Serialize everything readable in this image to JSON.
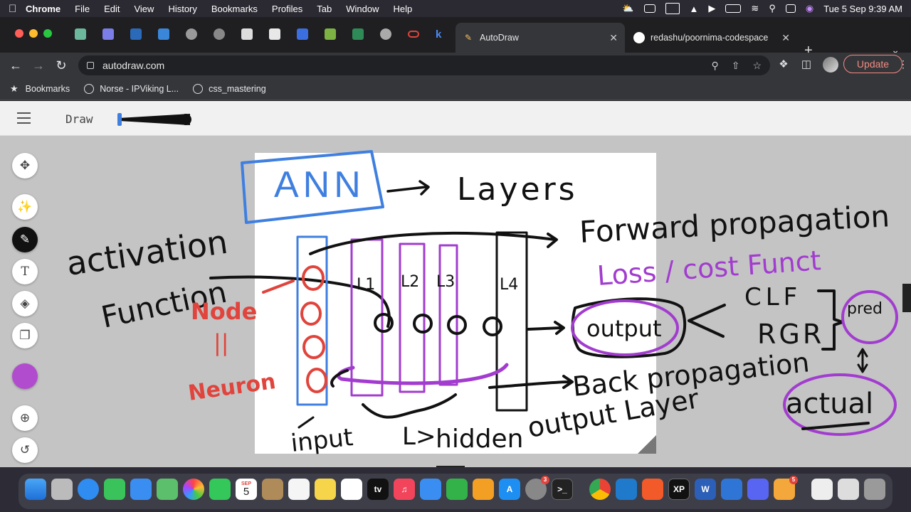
{
  "menubar": {
    "app": "Chrome",
    "items": [
      "File",
      "Edit",
      "View",
      "History",
      "Bookmarks",
      "Profiles",
      "Tab",
      "Window",
      "Help"
    ],
    "clock": "Tue 5 Sep  9:39 AM"
  },
  "tabs": {
    "active_label": "AutoDraw",
    "second_label": "redashu/poornima-codespace",
    "pinned_k": "k"
  },
  "toolbar": {
    "url": "autodraw.com",
    "update_label": "Update"
  },
  "bookmarks": {
    "items": [
      "Bookmarks",
      "Norse - IPViking L...",
      "css_mastering"
    ]
  },
  "app": {
    "mode_label": "Draw",
    "selected_color": "#b24ccf"
  },
  "ink_colors": {
    "black": "#111111",
    "blue": "#3f7fe0",
    "red": "#e0443c",
    "purple": "#a23ccf"
  },
  "sketch_text": {
    "ann": "ANN",
    "layers": "Layers",
    "activation": "activation",
    "function": "Function",
    "node": "Node",
    "equals": "||",
    "neuron": "Neuron",
    "l1": "L1",
    "l2": "L2",
    "l3": "L3",
    "l4": "L4",
    "forward": "Forward propagation",
    "loss": "Loss / cost Funct",
    "output": "output",
    "clf": "CLF",
    "rgr": "RGR",
    "pred": "pred",
    "actual": "actual",
    "back": "Back propagation",
    "input": "input",
    "hidden": "hidden",
    "output_layer": "output Layer",
    "arrow_mark": "L>"
  },
  "dock": {
    "calendar_month": "SEP",
    "calendar_day": "5",
    "settings_badge": "3",
    "finder_badge": "5"
  }
}
